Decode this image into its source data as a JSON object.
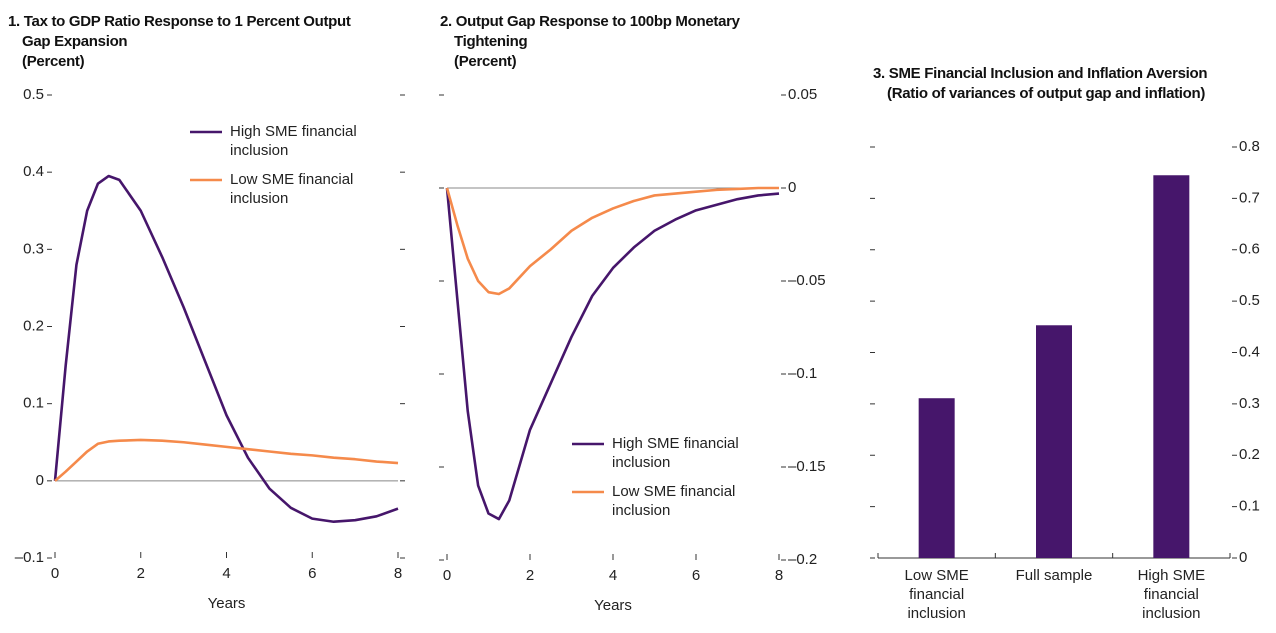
{
  "chart_data": [
    {
      "type": "line",
      "title": "1. Tax to GDP Ratio Response to 1 Percent Output Gap Expansion",
      "subtitle": "(Percent)",
      "xlabel": "Years",
      "x": [
        0,
        0.25,
        0.5,
        0.75,
        1,
        1.25,
        1.5,
        2,
        2.5,
        3,
        3.5,
        4,
        4.5,
        5,
        5.5,
        6,
        6.5,
        7,
        7.5,
        8
      ],
      "series": [
        {
          "name": "High SME financial inclusion",
          "color": "#46166b",
          "values": [
            0,
            0.15,
            0.28,
            0.35,
            0.385,
            0.395,
            0.39,
            0.35,
            0.29,
            0.225,
            0.155,
            0.085,
            0.03,
            -0.01,
            -0.035,
            -0.049,
            -0.053,
            -0.051,
            -0.046,
            -0.036
          ]
        },
        {
          "name": "Low SME financial inclusion",
          "color": "#f58a4b",
          "values": [
            0,
            0.012,
            0.025,
            0.038,
            0.048,
            0.051,
            0.052,
            0.053,
            0.052,
            0.05,
            0.047,
            0.044,
            0.041,
            0.038,
            0.035,
            0.033,
            0.03,
            0.028,
            0.025,
            0.023
          ]
        }
      ],
      "xlim": [
        0,
        8
      ],
      "xticks": [
        0,
        2,
        4,
        6,
        8
      ],
      "ylim": [
        -0.1,
        0.5
      ],
      "yticks": [
        {
          "value": -0.1,
          "label": "–0.1"
        },
        0,
        0.1,
        0.2,
        0.3,
        0.4,
        0.5
      ],
      "y_axis_side": "left",
      "legend": "upper center"
    },
    {
      "type": "line",
      "title": "2. Output Gap Response to 100bp Monetary Tightening",
      "subtitle": "(Percent)",
      "xlabel": "Years",
      "x": [
        0,
        0.25,
        0.5,
        0.75,
        1,
        1.25,
        1.5,
        2,
        2.5,
        3,
        3.5,
        4,
        4.5,
        5,
        5.5,
        6,
        6.5,
        7,
        7.5,
        8
      ],
      "series": [
        {
          "name": "High SME financial inclusion",
          "color": "#46166b",
          "values": [
            0,
            -0.06,
            -0.12,
            -0.16,
            -0.175,
            -0.178,
            -0.168,
            -0.13,
            -0.105,
            -0.08,
            -0.058,
            -0.043,
            -0.032,
            -0.023,
            -0.017,
            -0.012,
            -0.009,
            -0.006,
            -0.004,
            -0.003
          ]
        },
        {
          "name": "Low SME financial inclusion",
          "color": "#f58a4b",
          "values": [
            0,
            -0.02,
            -0.038,
            -0.05,
            -0.056,
            -0.057,
            -0.054,
            -0.042,
            -0.033,
            -0.023,
            -0.016,
            -0.011,
            -0.007,
            -0.004,
            -0.003,
            -0.002,
            -0.001,
            -0.0005,
            0,
            0
          ]
        }
      ],
      "xlim": [
        0,
        8
      ],
      "xticks": [
        0,
        2,
        4,
        6,
        8
      ],
      "ylim": [
        -0.2,
        0.05
      ],
      "yticks": [
        {
          "value": -0.2,
          "label": "–0.2"
        },
        {
          "value": -0.15,
          "label": "–0.15"
        },
        {
          "value": -0.1,
          "label": "–0.1"
        },
        {
          "value": -0.05,
          "label": "–0.05"
        },
        0,
        0.05
      ],
      "y_axis_side": "right",
      "legend": "lower right"
    },
    {
      "type": "bar",
      "title": "3. SME Financial Inclusion and Inflation Aversion",
      "subtitle": "(Ratio of variances of output gap and inflation)",
      "categories": [
        "Low SME financial inclusion",
        "Full sample",
        "High SME financial inclusion"
      ],
      "values": [
        0.311,
        0.453,
        0.745
      ],
      "color": "#46166b",
      "ylim": [
        0,
        0.8
      ],
      "yticks": [
        0,
        0.1,
        0.2,
        0.3,
        0.4,
        0.5,
        0.6,
        0.7,
        0.8
      ],
      "y_axis_side": "right"
    }
  ]
}
